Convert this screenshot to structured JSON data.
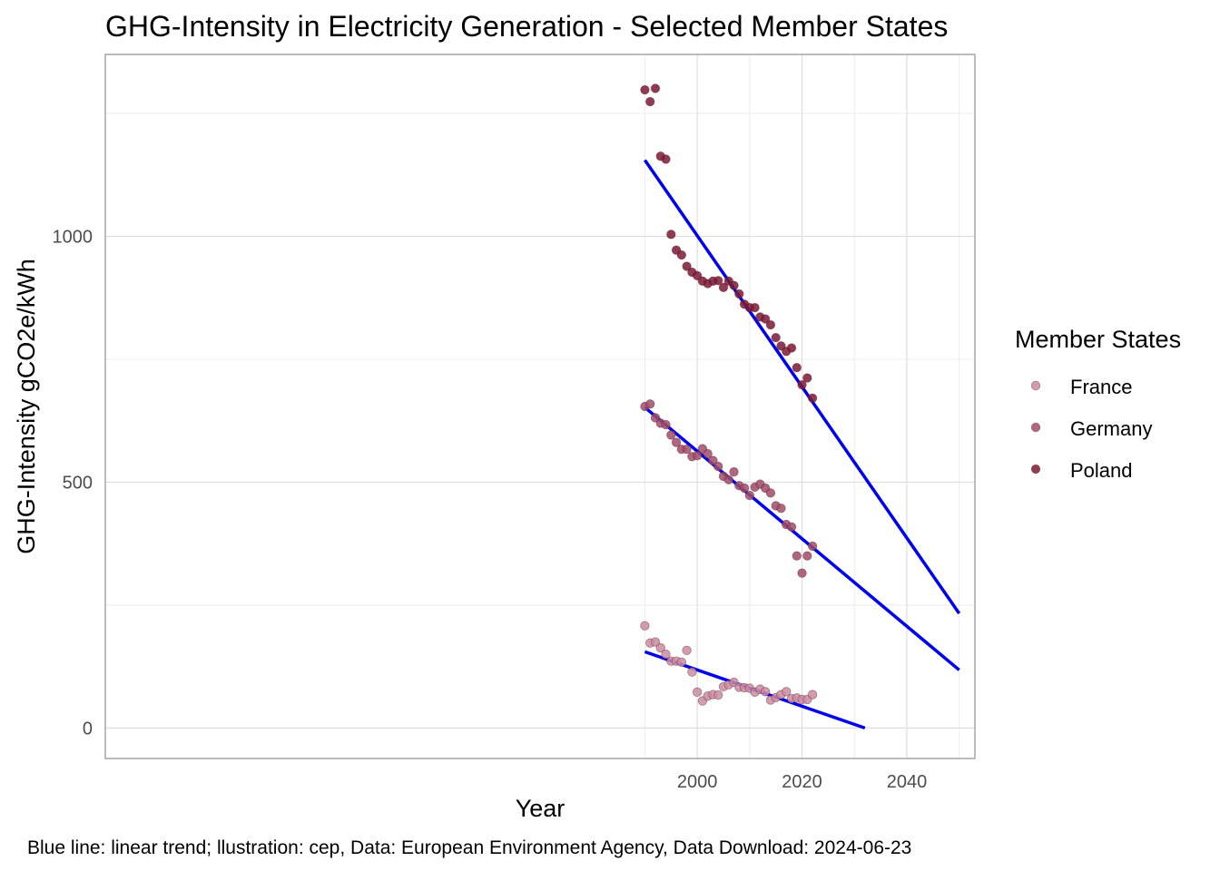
{
  "chart_data": {
    "type": "scatter",
    "title": "GHG-Intensity in Electricity Generation - Selected Member States",
    "xlabel": "Year",
    "ylabel": "GHG-Intensity gCO2e/kWh",
    "xlim": [
      1887,
      2053
    ],
    "ylim": [
      -62,
      1370
    ],
    "x_ticks": [
      2000,
      2020,
      2040
    ],
    "y_ticks": [
      0,
      500,
      1000
    ],
    "grid": true,
    "legend": {
      "title": "Member States",
      "position": "right"
    },
    "caption": "Blue line: linear trend; llustration: cep, Data: European Environment Agency, Data Download: 2024-06-23",
    "series": [
      {
        "name": "France",
        "color": "#c98ca1",
        "x": [
          1990,
          1991,
          1992,
          1993,
          1994,
          1995,
          1996,
          1997,
          1998,
          1999,
          2000,
          2001,
          2002,
          2003,
          2004,
          2005,
          2006,
          2007,
          2008,
          2009,
          2010,
          2011,
          2012,
          2013,
          2014,
          2015,
          2016,
          2017,
          2018,
          2019,
          2020,
          2021,
          2022
        ],
        "y": [
          208,
          173,
          175,
          163,
          150,
          136,
          136,
          134,
          158,
          114,
          73,
          55,
          65,
          68,
          67,
          84,
          88,
          93,
          83,
          82,
          81,
          73,
          79,
          74,
          57,
          62,
          68,
          74,
          60,
          61,
          58,
          58,
          68
        ]
      },
      {
        "name": "Germany",
        "color": "#a04c68",
        "x": [
          1990,
          1991,
          1992,
          1993,
          1994,
          1995,
          1996,
          1997,
          1998,
          1999,
          2000,
          2001,
          2002,
          2003,
          2004,
          2005,
          2006,
          2007,
          2008,
          2009,
          2010,
          2011,
          2012,
          2013,
          2014,
          2015,
          2016,
          2017,
          2018,
          2019,
          2020,
          2021,
          2022
        ],
        "y": [
          654,
          659,
          631,
          620,
          617,
          596,
          581,
          567,
          567,
          552,
          554,
          568,
          558,
          544,
          532,
          512,
          505,
          521,
          493,
          488,
          473,
          490,
          496,
          488,
          478,
          452,
          447,
          414,
          409,
          350,
          315,
          350,
          370
        ]
      },
      {
        "name": "Poland",
        "color": "#7b1a35",
        "x": [
          1990,
          1991,
          1992,
          1993,
          1994,
          1995,
          1996,
          1997,
          1998,
          1999,
          2000,
          2001,
          2002,
          2003,
          2004,
          2005,
          2006,
          2007,
          2008,
          2009,
          2010,
          2011,
          2012,
          2013,
          2014,
          2015,
          2016,
          2017,
          2018,
          2019,
          2020,
          2021,
          2022
        ],
        "y": [
          1298,
          1274,
          1301,
          1163,
          1157,
          1004,
          972,
          962,
          939,
          927,
          920,
          909,
          904,
          909,
          910,
          896,
          909,
          900,
          883,
          862,
          855,
          855,
          836,
          832,
          820,
          794,
          777,
          766,
          773,
          733,
          698,
          712,
          671
        ]
      }
    ],
    "trendlines": [
      {
        "series": "France",
        "color": "#0000ee",
        "x": [
          1990,
          2032
        ],
        "y": [
          155,
          0
        ]
      },
      {
        "series": "Germany",
        "color": "#0000ee",
        "x": [
          1990,
          2050
        ],
        "y": [
          652,
          118
        ]
      },
      {
        "series": "Poland",
        "color": "#0000ee",
        "x": [
          1990,
          2050
        ],
        "y": [
          1155,
          233
        ]
      }
    ]
  }
}
